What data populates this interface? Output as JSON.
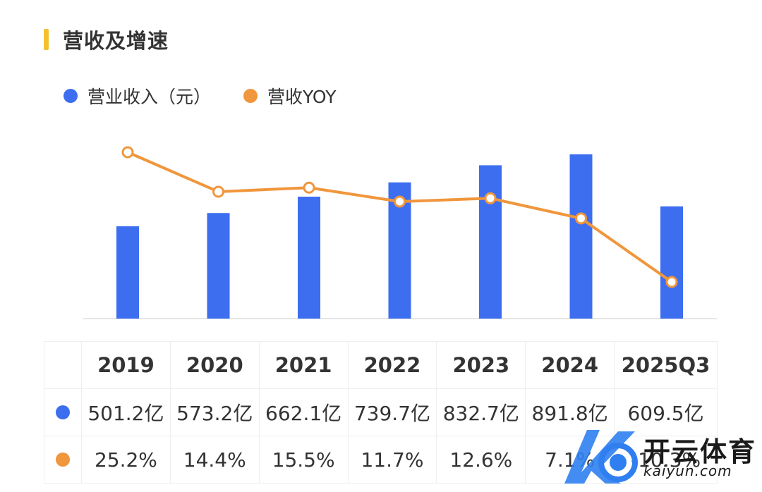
{
  "title": "营收及增速",
  "colors": {
    "accent_bar": "#f3c12e",
    "revenue": "#3d6ef0",
    "yoy": "#f0963c"
  },
  "legend": [
    {
      "label": "营业收入（元）",
      "color": "#3d6ef0"
    },
    {
      "label": "营收YOY",
      "color": "#f0963c"
    }
  ],
  "chart_data": {
    "type": "bar",
    "categories": [
      "2019",
      "2020",
      "2021",
      "2022",
      "2023",
      "2024",
      "2025Q3"
    ],
    "series": [
      {
        "name": "营业收入（元）",
        "type": "bar",
        "values": [
          501.2,
          573.2,
          662.1,
          739.7,
          832.7,
          891.8,
          609.5
        ],
        "unit": "亿"
      },
      {
        "name": "营收YOY",
        "type": "line",
        "values": [
          25.2,
          14.4,
          15.5,
          11.7,
          12.6,
          7.1,
          -10.3
        ],
        "unit": "%"
      }
    ],
    "grid": false
  },
  "table": {
    "years": [
      "2019",
      "2020",
      "2021",
      "2022",
      "2023",
      "2024",
      "2025Q3"
    ],
    "revenue": [
      "501.2亿",
      "573.2亿",
      "662.1亿",
      "739.7亿",
      "832.7亿",
      "891.8亿",
      "609.5亿"
    ],
    "yoy": [
      "25.2%",
      "14.4%",
      "15.5%",
      "11.7%",
      "12.6%",
      "7.1%",
      "-10.3%"
    ]
  },
  "watermark": {
    "brand": "开云体育",
    "url": "kaiyun.com",
    "logo_text": "K"
  }
}
